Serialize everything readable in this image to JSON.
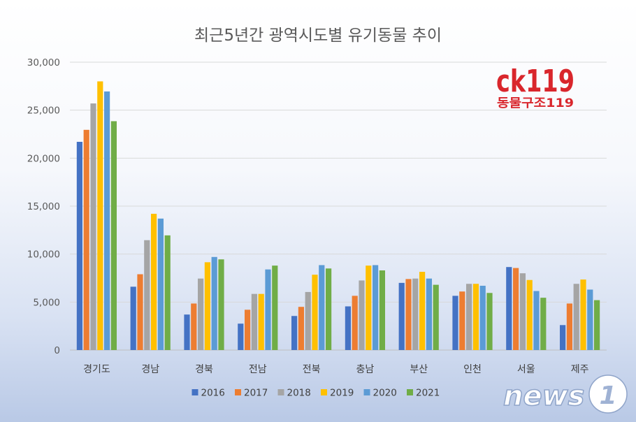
{
  "chart_data": {
    "type": "bar",
    "title": "최근5년간 광역시도별 유기동물 추이",
    "categories": [
      "경기도",
      "경남",
      "경북",
      "전남",
      "전북",
      "충남",
      "부산",
      "인천",
      "서울",
      "제주"
    ],
    "series": [
      {
        "name": "2016",
        "color": "#4472c4",
        "values": [
          21700,
          6600,
          3700,
          2750,
          3550,
          4550,
          7000,
          5650,
          8650,
          2600
        ]
      },
      {
        "name": "2017",
        "color": "#ed7d31",
        "values": [
          22950,
          7900,
          4850,
          4200,
          4500,
          5650,
          7400,
          6100,
          8550,
          4850
        ]
      },
      {
        "name": "2018",
        "color": "#a5a5a5",
        "values": [
          25700,
          11450,
          7450,
          5850,
          6050,
          7250,
          7450,
          6900,
          8000,
          6900
        ]
      },
      {
        "name": "2019",
        "color": "#ffc000",
        "values": [
          28000,
          14200,
          9150,
          5850,
          7850,
          8800,
          8150,
          6900,
          7300,
          7350
        ]
      },
      {
        "name": "2020",
        "color": "#5b9bd5",
        "values": [
          26950,
          13700,
          9700,
          8400,
          8850,
          8850,
          7450,
          6700,
          6150,
          6300
        ]
      },
      {
        "name": "2021",
        "color": "#70ad47",
        "values": [
          23850,
          11950,
          9450,
          8800,
          8500,
          8300,
          6800,
          5950,
          5450,
          5200
        ]
      }
    ],
    "ylim": [
      0,
      30000
    ],
    "yticks": [
      "0",
      "5,000",
      "10,000",
      "15,000",
      "20,000",
      "25,000",
      "30,000"
    ],
    "ytick_values": [
      0,
      5000,
      10000,
      15000,
      20000,
      25000,
      30000
    ],
    "grid": true,
    "legend_position": "bottom"
  },
  "logo": {
    "main": "ck119",
    "sub": "동물구조119"
  },
  "watermark": {
    "text": "news",
    "number": "1"
  }
}
